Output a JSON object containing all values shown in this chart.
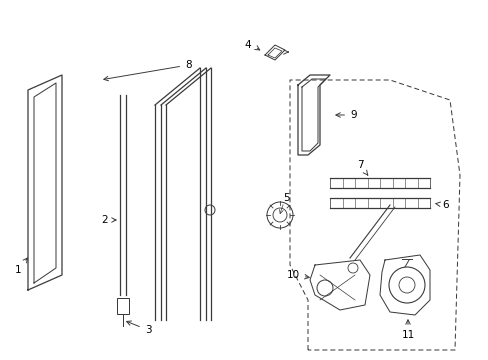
{
  "bg_color": "#ffffff",
  "line_color": "#3a3a3a",
  "text_color": "#000000",
  "figsize": [
    4.89,
    3.6
  ],
  "dpi": 100
}
